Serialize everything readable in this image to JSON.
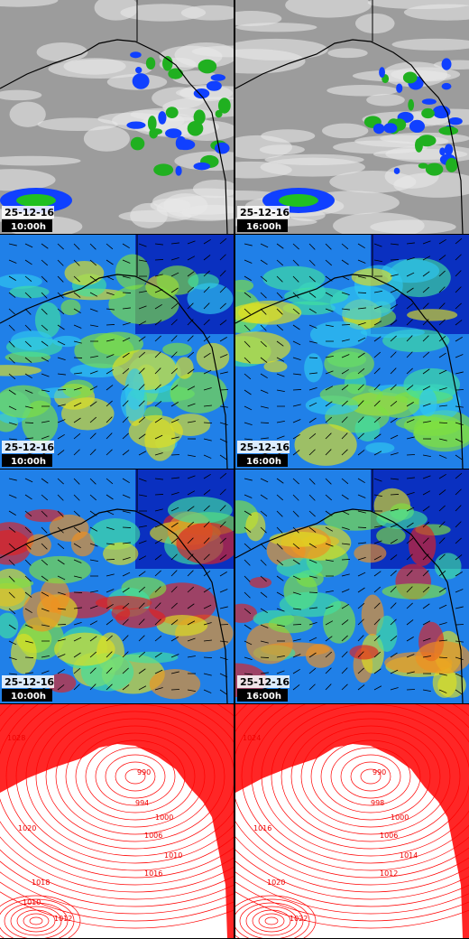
{
  "rows": [
    {
      "panels": [
        {
          "date": "25-12-16",
          "time": "10:00h"
        },
        {
          "date": "25-12-16",
          "time": "16:00h"
        }
      ]
    },
    {
      "panels": [
        {
          "date": "25-12-16",
          "time": "10:00h"
        },
        {
          "date": "25-12-16",
          "time": "16:00h"
        }
      ]
    },
    {
      "panels": [
        {
          "date": "25-12-16",
          "time": "10:00h"
        },
        {
          "date": "25-12-16",
          "time": "16:00h"
        }
      ]
    }
  ],
  "pressure_row": {
    "panels": [
      {
        "labels": [
          "1028",
          "990",
          "994",
          "1000",
          "1006",
          "1010",
          "1016",
          "1020",
          "1018",
          "1012",
          "1010"
        ]
      },
      {
        "labels": [
          "1024",
          "990",
          "998",
          "1000",
          "1006",
          "1014",
          "1012",
          "1016",
          "1020",
          "1022"
        ]
      }
    ]
  }
}
